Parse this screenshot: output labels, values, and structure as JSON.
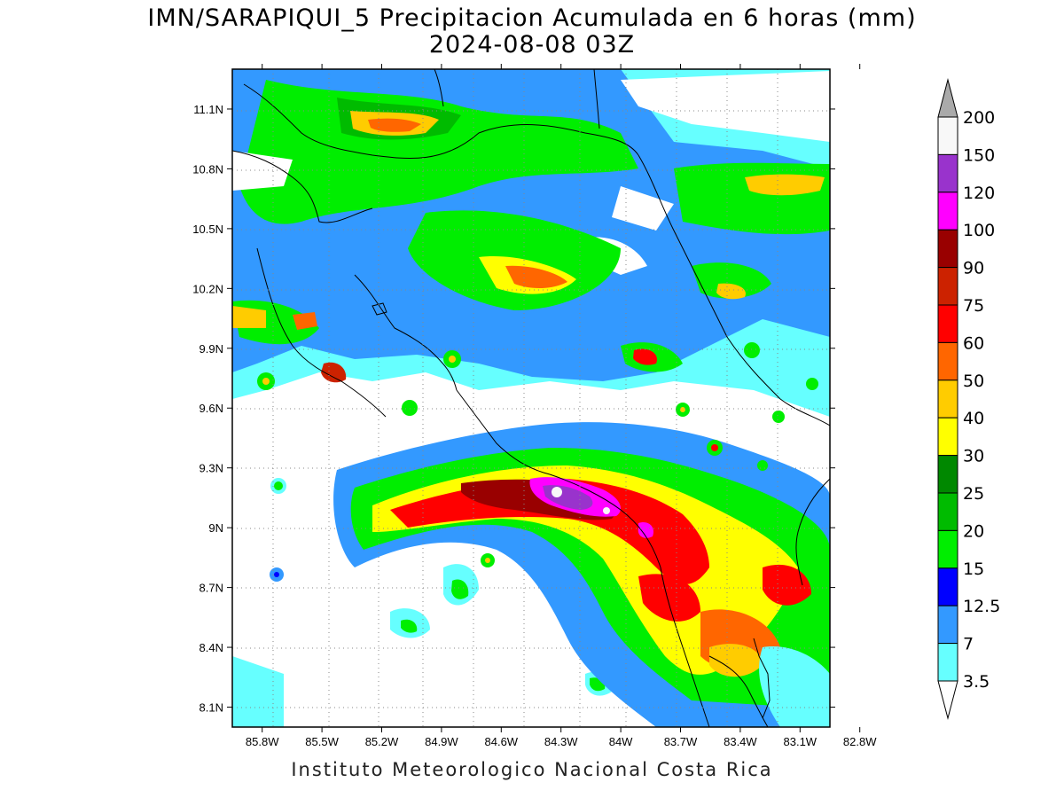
{
  "title": {
    "line1": "IMN/SARAPIQUI_5 Precipitacion Acumulada en 6 horas (mm)",
    "line2": "2024-08-08 03Z"
  },
  "credit": "Instituto Meteorologico Nacional Costa Rica",
  "map": {
    "lon_ticks": [
      "85.8W",
      "85.5W",
      "85.2W",
      "84.9W",
      "84.6W",
      "84.3W",
      "84W",
      "83.7W",
      "83.4W",
      "83.1W",
      "82.8W"
    ],
    "lat_ticks": [
      "11.1N",
      "10.8N",
      "10.5N",
      "10.2N",
      "9.9N",
      "9.6N",
      "9.3N",
      "9N",
      "8.7N",
      "8.4N",
      "8.1N"
    ],
    "lon_values": [
      -85.8,
      -85.5,
      -85.2,
      -84.9,
      -84.6,
      -84.3,
      -84.0,
      -83.7,
      -83.4,
      -83.1,
      -82.8
    ],
    "lat_values": [
      11.1,
      10.8,
      10.5,
      10.2,
      9.9,
      9.6,
      9.3,
      9.0,
      8.7,
      8.4,
      8.1
    ],
    "lon_range": [
      -85.95,
      -82.95
    ],
    "lat_range": [
      8.0,
      11.3
    ]
  },
  "legend": {
    "levels": [
      {
        "label": "3.5",
        "color": "#ffffff"
      },
      {
        "label": "7",
        "color": "#66ffff"
      },
      {
        "label": "12.5",
        "color": "#3399ff"
      },
      {
        "label": "15",
        "color": "#0000ff"
      },
      {
        "label": "20",
        "color": "#00ee00"
      },
      {
        "label": "25",
        "color": "#00bb00"
      },
      {
        "label": "30",
        "color": "#008800"
      },
      {
        "label": "40",
        "color": "#ffff00"
      },
      {
        "label": "50",
        "color": "#ffcc00"
      },
      {
        "label": "60",
        "color": "#ff6600"
      },
      {
        "label": "75",
        "color": "#ff0000"
      },
      {
        "label": "90",
        "color": "#cc2200"
      },
      {
        "label": "100",
        "color": "#990000"
      },
      {
        "label": "120",
        "color": "#ff00ff"
      },
      {
        "label": "150",
        "color": "#9933cc"
      },
      {
        "label": "200",
        "color": "#f8f8f8"
      }
    ],
    "under_color": "#ffffff",
    "over_color": "#aaaaaa"
  }
}
